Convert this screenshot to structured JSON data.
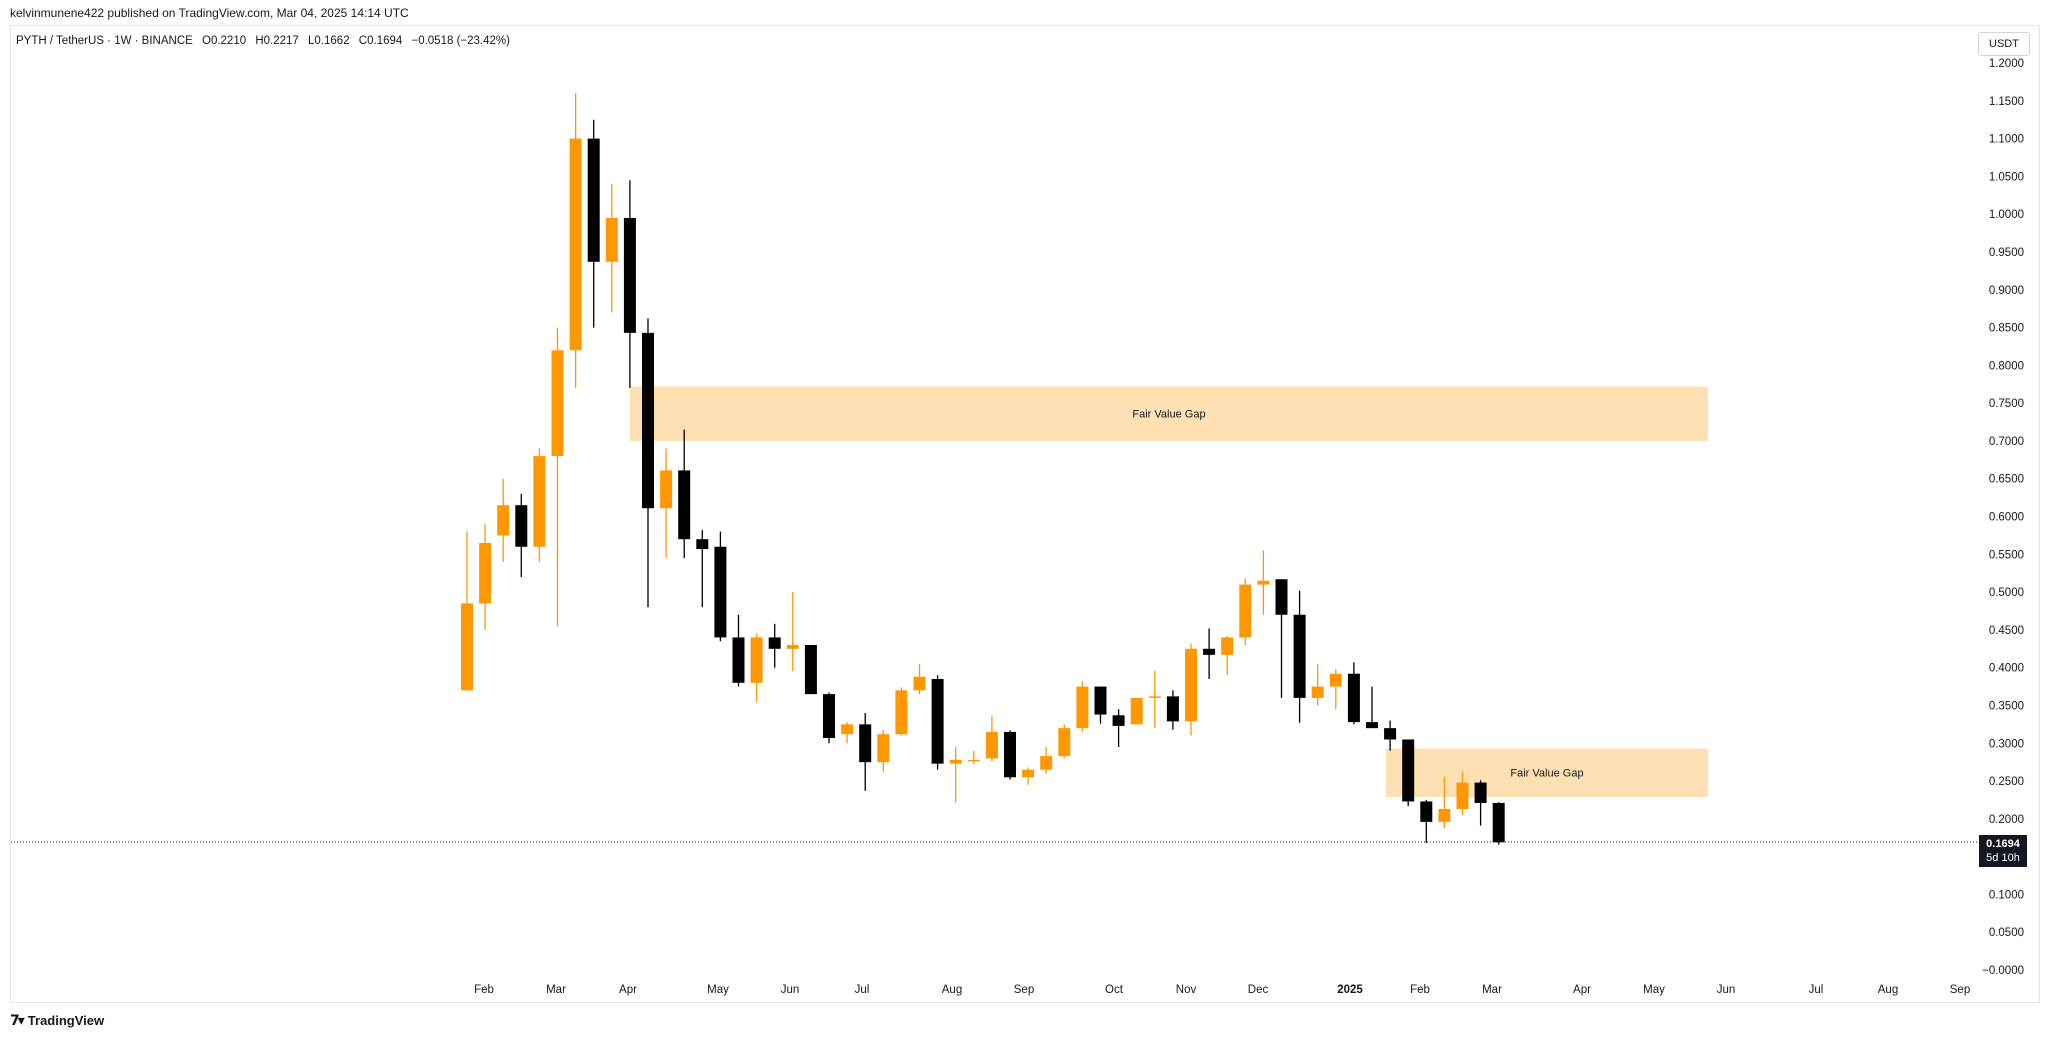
{
  "publish_line": "kelvinmunene422 published on TradingView.com, Mar 04, 2025 14:14 UTC",
  "legend": {
    "symbol": "PYTH / TetherUS · 1W · BINANCE",
    "open": "O0.2210",
    "high": "H0.2217",
    "low": "L0.1662",
    "close": "C0.1694",
    "change": "−0.0518 (−23.42%)"
  },
  "unit": "USDT",
  "price_tag": {
    "price": "0.1694",
    "countdown": "5d 10h"
  },
  "brand": {
    "name": "TradingView",
    "icon": "tradingview-logo"
  },
  "colors": {
    "up": "#ff9800",
    "down": "#000000",
    "fvg": "#ffe0b2",
    "axis_text": "#131722"
  },
  "chart_data": {
    "type": "candlestick",
    "interval": "1W",
    "y_axis_ticks": [
      "1.2000",
      "1.1500",
      "1.1000",
      "1.0500",
      "1.0000",
      "0.9500",
      "0.9000",
      "0.8500",
      "0.8000",
      "0.7500",
      "0.7000",
      "0.6500",
      "0.6000",
      "0.5500",
      "0.5000",
      "0.4500",
      "0.4000",
      "0.3500",
      "0.3000",
      "0.2500",
      "0.2000",
      "0.1500",
      "0.1000",
      "0.0500",
      "−0.0000"
    ],
    "x_axis_ticks": [
      "Feb",
      "Mar",
      "Apr",
      "May",
      "Jun",
      "Jul",
      "Aug",
      "Sep",
      "Oct",
      "Nov",
      "Dec",
      "2025",
      "Feb",
      "Mar",
      "Apr",
      "May",
      "Jun",
      "Jul",
      "Aug",
      "Sep"
    ],
    "annotations": [
      {
        "label": "Fair Value Gap",
        "price_high": 0.772,
        "price_low": 0.7
      },
      {
        "label": "Fair Value Gap",
        "price_high": 0.293,
        "price_low": 0.229
      }
    ],
    "last_price": 0.1694,
    "candles": [
      {
        "o": 0.37,
        "h": 0.58,
        "l": 0.37,
        "c": 0.485
      },
      {
        "o": 0.485,
        "h": 0.59,
        "l": 0.45,
        "c": 0.565
      },
      {
        "o": 0.575,
        "h": 0.65,
        "l": 0.54,
        "c": 0.615
      },
      {
        "o": 0.615,
        "h": 0.63,
        "l": 0.52,
        "c": 0.56
      },
      {
        "o": 0.56,
        "h": 0.69,
        "l": 0.54,
        "c": 0.68
      },
      {
        "o": 0.68,
        "h": 0.85,
        "l": 0.455,
        "c": 0.82
      },
      {
        "o": 0.82,
        "h": 1.16,
        "l": 0.77,
        "c": 1.1
      },
      {
        "o": 1.1,
        "h": 1.125,
        "l": 0.85,
        "c": 0.937
      },
      {
        "o": 0.937,
        "h": 1.04,
        "l": 0.87,
        "c": 0.995
      },
      {
        "o": 0.995,
        "h": 1.045,
        "l": 0.77,
        "c": 0.843
      },
      {
        "o": 0.843,
        "h": 0.862,
        "l": 0.48,
        "c": 0.611
      },
      {
        "o": 0.611,
        "h": 0.69,
        "l": 0.545,
        "c": 0.661
      },
      {
        "o": 0.661,
        "h": 0.715,
        "l": 0.545,
        "c": 0.57
      },
      {
        "o": 0.57,
        "h": 0.582,
        "l": 0.48,
        "c": 0.557
      },
      {
        "o": 0.56,
        "h": 0.58,
        "l": 0.435,
        "c": 0.44
      },
      {
        "o": 0.44,
        "h": 0.47,
        "l": 0.375,
        "c": 0.38
      },
      {
        "o": 0.38,
        "h": 0.445,
        "l": 0.355,
        "c": 0.44
      },
      {
        "o": 0.44,
        "h": 0.458,
        "l": 0.4,
        "c": 0.425
      },
      {
        "o": 0.425,
        "h": 0.5,
        "l": 0.395,
        "c": 0.43
      },
      {
        "o": 0.43,
        "h": 0.43,
        "l": 0.37,
        "c": 0.365
      },
      {
        "o": 0.365,
        "h": 0.367,
        "l": 0.3,
        "c": 0.307
      },
      {
        "o": 0.312,
        "h": 0.328,
        "l": 0.3,
        "c": 0.325
      },
      {
        "o": 0.325,
        "h": 0.34,
        "l": 0.237,
        "c": 0.275
      },
      {
        "o": 0.275,
        "h": 0.318,
        "l": 0.262,
        "c": 0.312
      },
      {
        "o": 0.312,
        "h": 0.374,
        "l": 0.31,
        "c": 0.37
      },
      {
        "o": 0.37,
        "h": 0.405,
        "l": 0.365,
        "c": 0.388
      },
      {
        "o": 0.385,
        "h": 0.39,
        "l": 0.265,
        "c": 0.273
      },
      {
        "o": 0.273,
        "h": 0.295,
        "l": 0.222,
        "c": 0.278
      },
      {
        "o": 0.278,
        "h": 0.29,
        "l": 0.272,
        "c": 0.278
      },
      {
        "o": 0.28,
        "h": 0.336,
        "l": 0.276,
        "c": 0.315
      },
      {
        "o": 0.315,
        "h": 0.317,
        "l": 0.252,
        "c": 0.255
      },
      {
        "o": 0.255,
        "h": 0.268,
        "l": 0.245,
        "c": 0.265
      },
      {
        "o": 0.265,
        "h": 0.295,
        "l": 0.26,
        "c": 0.283
      },
      {
        "o": 0.283,
        "h": 0.325,
        "l": 0.28,
        "c": 0.32
      },
      {
        "o": 0.32,
        "h": 0.382,
        "l": 0.315,
        "c": 0.375
      },
      {
        "o": 0.375,
        "h": 0.375,
        "l": 0.326,
        "c": 0.338
      },
      {
        "o": 0.337,
        "h": 0.345,
        "l": 0.295,
        "c": 0.323
      },
      {
        "o": 0.325,
        "h": 0.36,
        "l": 0.325,
        "c": 0.36
      },
      {
        "o": 0.36,
        "h": 0.396,
        "l": 0.32,
        "c": 0.362
      },
      {
        "o": 0.362,
        "h": 0.37,
        "l": 0.318,
        "c": 0.329
      },
      {
        "o": 0.329,
        "h": 0.432,
        "l": 0.31,
        "c": 0.425
      },
      {
        "o": 0.425,
        "h": 0.452,
        "l": 0.385,
        "c": 0.417
      },
      {
        "o": 0.417,
        "h": 0.442,
        "l": 0.39,
        "c": 0.44
      },
      {
        "o": 0.44,
        "h": 0.518,
        "l": 0.43,
        "c": 0.51
      },
      {
        "o": 0.51,
        "h": 0.555,
        "l": 0.47,
        "c": 0.515
      },
      {
        "o": 0.517,
        "h": 0.517,
        "l": 0.36,
        "c": 0.47
      },
      {
        "o": 0.47,
        "h": 0.502,
        "l": 0.327,
        "c": 0.36
      },
      {
        "o": 0.36,
        "h": 0.405,
        "l": 0.35,
        "c": 0.375
      },
      {
        "o": 0.375,
        "h": 0.398,
        "l": 0.345,
        "c": 0.392
      },
      {
        "o": 0.392,
        "h": 0.407,
        "l": 0.325,
        "c": 0.328
      },
      {
        "o": 0.328,
        "h": 0.375,
        "l": 0.32,
        "c": 0.32
      },
      {
        "o": 0.32,
        "h": 0.33,
        "l": 0.29,
        "c": 0.305
      },
      {
        "o": 0.305,
        "h": 0.305,
        "l": 0.217,
        "c": 0.223
      },
      {
        "o": 0.223,
        "h": 0.225,
        "l": 0.168,
        "c": 0.196
      },
      {
        "o": 0.196,
        "h": 0.255,
        "l": 0.188,
        "c": 0.213
      },
      {
        "o": 0.213,
        "h": 0.263,
        "l": 0.205,
        "c": 0.248
      },
      {
        "o": 0.248,
        "h": 0.251,
        "l": 0.191,
        "c": 0.221
      },
      {
        "o": 0.221,
        "h": 0.222,
        "l": 0.166,
        "c": 0.169
      }
    ]
  }
}
